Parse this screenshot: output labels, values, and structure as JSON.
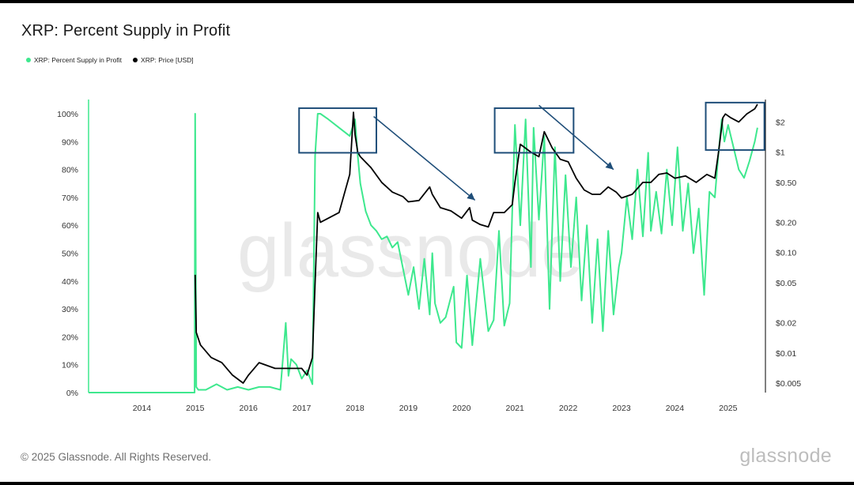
{
  "chart_data": {
    "type": "line",
    "title": "XRP: Percent Supply in Profit",
    "watermark": "glassnode",
    "legend": [
      {
        "name": "XRP: Percent Supply in Profit",
        "color": "#3ee88e"
      },
      {
        "name": "XRP: Price [USD]",
        "color": "#000000"
      }
    ],
    "x_ticks": [
      "2014",
      "2015",
      "2016",
      "2017",
      "2018",
      "2019",
      "2020",
      "2021",
      "2022",
      "2023",
      "2024",
      "2025"
    ],
    "y_left_ticks": [
      "0%",
      "10%",
      "20%",
      "30%",
      "40%",
      "50%",
      "60%",
      "70%",
      "80%",
      "90%",
      "100%"
    ],
    "y_right_ticks": [
      "$0.005",
      "$0.01",
      "$0.02",
      "$0.05",
      "$0.10",
      "$0.20",
      "$0.50",
      "$1",
      "$2"
    ],
    "ylim_left": [
      0,
      100
    ],
    "ylim_right_log": [
      0.005,
      3
    ],
    "xlim": [
      2013.0,
      2025.7
    ],
    "series": [
      {
        "name": "XRP: Percent Supply in Profit",
        "axis": "left",
        "color": "#3ee88e",
        "x": [
          2013.0,
          2014.5,
          2014.99,
          2015.0,
          2015.02,
          2015.06,
          2015.2,
          2015.4,
          2015.6,
          2015.8,
          2016.0,
          2016.2,
          2016.4,
          2016.6,
          2016.7,
          2016.75,
          2016.8,
          2016.9,
          2017.0,
          2017.1,
          2017.2,
          2017.25,
          2017.3,
          2017.35,
          2017.5,
          2017.7,
          2017.9,
          2018.0,
          2018.05,
          2018.1,
          2018.2,
          2018.3,
          2018.4,
          2018.5,
          2018.6,
          2018.7,
          2018.8,
          2019.0,
          2019.1,
          2019.2,
          2019.3,
          2019.4,
          2019.45,
          2019.5,
          2019.6,
          2019.7,
          2019.85,
          2019.9,
          2020.0,
          2020.1,
          2020.2,
          2020.35,
          2020.5,
          2020.6,
          2020.7,
          2020.8,
          2020.9,
          2020.95,
          2021.0,
          2021.1,
          2021.2,
          2021.3,
          2021.35,
          2021.45,
          2021.55,
          2021.65,
          2021.75,
          2021.85,
          2021.95,
          2022.05,
          2022.15,
          2022.25,
          2022.35,
          2022.45,
          2022.55,
          2022.65,
          2022.75,
          2022.85,
          2022.95,
          2023.0,
          2023.1,
          2023.2,
          2023.3,
          2023.4,
          2023.5,
          2023.55,
          2023.65,
          2023.75,
          2023.85,
          2023.95,
          2024.05,
          2024.15,
          2024.25,
          2024.35,
          2024.45,
          2024.55,
          2024.65,
          2024.75,
          2024.82,
          2024.88,
          2024.93,
          2025.0,
          2025.1,
          2025.2,
          2025.3,
          2025.4,
          2025.5,
          2025.55
        ],
        "values": [
          0,
          0,
          0,
          100,
          2,
          1,
          1,
          3,
          1,
          2,
          1,
          2,
          2,
          1,
          25,
          6,
          12,
          10,
          5,
          8,
          3,
          85,
          100,
          100,
          98,
          95,
          92,
          98,
          85,
          75,
          65,
          60,
          58,
          55,
          56,
          52,
          54,
          35,
          45,
          30,
          48,
          28,
          50,
          32,
          25,
          27,
          38,
          18,
          16,
          42,
          17,
          48,
          22,
          26,
          58,
          24,
          32,
          65,
          96,
          60,
          98,
          45,
          95,
          62,
          92,
          30,
          88,
          40,
          78,
          45,
          70,
          33,
          60,
          25,
          55,
          22,
          58,
          28,
          45,
          50,
          70,
          55,
          80,
          56,
          86,
          58,
          72,
          57,
          80,
          60,
          88,
          58,
          75,
          50,
          66,
          35,
          72,
          70,
          86,
          98,
          90,
          96,
          88,
          80,
          77,
          83,
          90,
          95
        ]
      },
      {
        "name": "XRP: Price [USD]",
        "axis": "right",
        "color": "#000000",
        "x": [
          2015.0,
          2015.02,
          2015.1,
          2015.3,
          2015.5,
          2015.7,
          2015.9,
          2016.0,
          2016.2,
          2016.5,
          2016.75,
          2016.9,
          2017.0,
          2017.1,
          2017.2,
          2017.25,
          2017.3,
          2017.35,
          2017.5,
          2017.7,
          2017.9,
          2017.97,
          2018.0,
          2018.05,
          2018.1,
          2018.3,
          2018.5,
          2018.7,
          2018.9,
          2019.0,
          2019.2,
          2019.4,
          2019.45,
          2019.6,
          2019.8,
          2020.0,
          2020.15,
          2020.2,
          2020.35,
          2020.5,
          2020.6,
          2020.8,
          2020.95,
          2021.0,
          2021.1,
          2021.3,
          2021.45,
          2021.55,
          2021.7,
          2021.85,
          2022.0,
          2022.15,
          2022.3,
          2022.45,
          2022.6,
          2022.75,
          2022.9,
          2023.0,
          2023.2,
          2023.4,
          2023.55,
          2023.7,
          2023.85,
          2024.0,
          2024.2,
          2024.4,
          2024.6,
          2024.75,
          2024.82,
          2024.9,
          2024.95,
          2025.05,
          2025.2,
          2025.35,
          2025.5,
          2025.55
        ],
        "values": [
          0.06,
          0.016,
          0.012,
          0.009,
          0.008,
          0.006,
          0.005,
          0.006,
          0.008,
          0.007,
          0.007,
          0.007,
          0.007,
          0.006,
          0.009,
          0.05,
          0.25,
          0.2,
          0.22,
          0.25,
          0.6,
          2.5,
          1.5,
          1.0,
          0.9,
          0.7,
          0.5,
          0.4,
          0.36,
          0.32,
          0.33,
          0.45,
          0.38,
          0.28,
          0.26,
          0.22,
          0.28,
          0.21,
          0.19,
          0.18,
          0.25,
          0.25,
          0.3,
          0.5,
          1.2,
          1.0,
          0.9,
          1.6,
          1.1,
          0.85,
          0.8,
          0.55,
          0.42,
          0.38,
          0.38,
          0.45,
          0.4,
          0.35,
          0.38,
          0.5,
          0.5,
          0.6,
          0.62,
          0.55,
          0.58,
          0.5,
          0.6,
          0.55,
          1.0,
          2.2,
          2.4,
          2.2,
          2.0,
          2.4,
          2.7,
          3.0
        ]
      }
    ],
    "annotations": [
      {
        "type": "box",
        "x_range": [
          2016.95,
          2018.4
        ],
        "y_range_left": [
          86,
          102
        ]
      },
      {
        "type": "box",
        "x_range": [
          2020.62,
          2022.1
        ],
        "y_range_left": [
          86,
          102
        ]
      },
      {
        "type": "box",
        "x_range": [
          2024.58,
          2025.68
        ],
        "y_range_left": [
          87,
          104
        ]
      },
      {
        "type": "arrow",
        "from": [
          2018.35,
          99
        ],
        "to": [
          2020.25,
          69
        ]
      },
      {
        "type": "arrow",
        "from": [
          2021.45,
          103
        ],
        "to": [
          2022.85,
          80
        ]
      }
    ]
  },
  "footer": {
    "copyright": "© 2025 Glassnode. All Rights Reserved.",
    "logo": "glassnode"
  }
}
